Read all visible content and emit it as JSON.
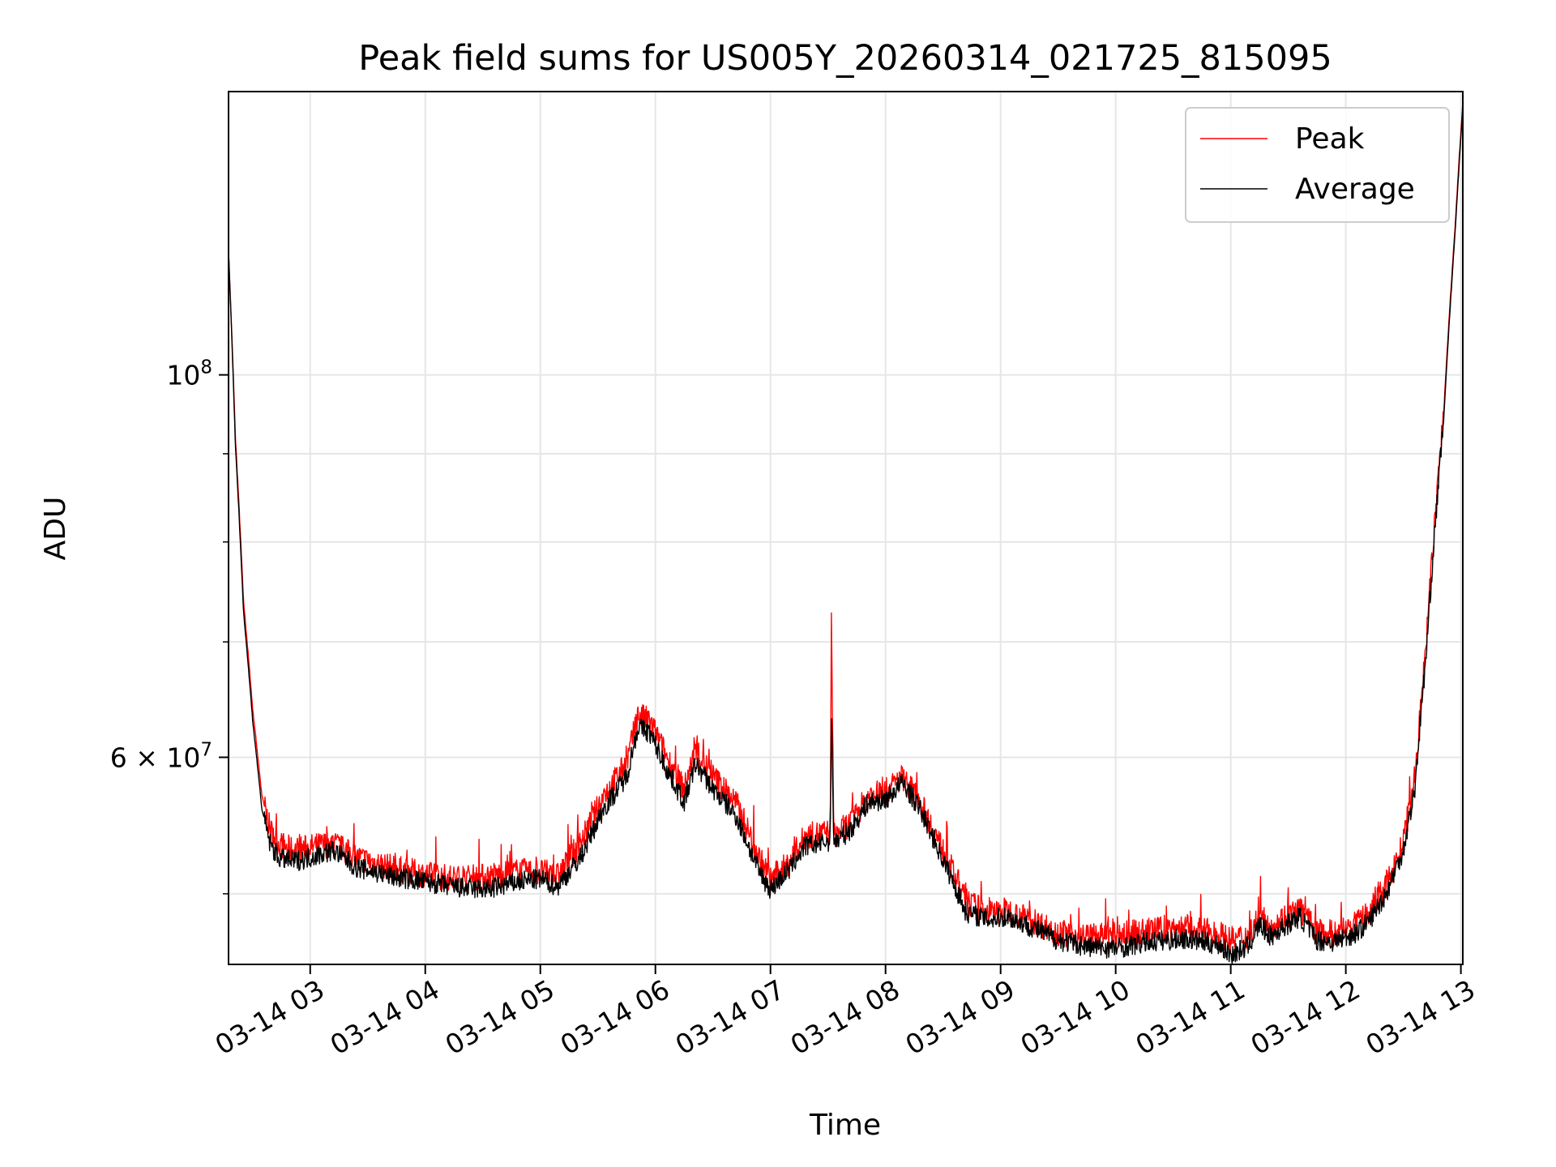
{
  "chart_data": {
    "type": "line",
    "title": "Peak field sums for US005Y_20260314_021725_815095",
    "xlabel": "Time",
    "ylabel": "ADU",
    "y_scale": "log",
    "ylim": [
      45500000,
      146000000
    ],
    "xlim": [
      "03-14 02:17:25",
      "03-14 13:01:00"
    ],
    "grid": true,
    "legend_position": "top-right",
    "x_ticks": [
      "03-14 03",
      "03-14 04",
      "03-14 05",
      "03-14 06",
      "03-14 07",
      "03-14 08",
      "03-14 09",
      "03-14 10",
      "03-14 11",
      "03-14 12",
      "03-14 13"
    ],
    "y_ticks": [
      {
        "value": 100000000,
        "mantissa": "10",
        "exponent": "8"
      },
      {
        "value": 60000000,
        "mantissa": "6 × 10",
        "exponent": "7"
      }
    ],
    "x_units": "hours since 03-14 00:00",
    "series": [
      {
        "name": "Peak",
        "color": "#ff0000",
        "x": [
          2.29,
          2.35,
          2.42,
          2.5,
          2.58,
          2.65,
          2.72,
          2.85,
          3.0,
          3.2,
          3.4,
          3.7,
          4.0,
          4.3,
          4.55,
          4.8,
          5.0,
          5.15,
          5.35,
          5.55,
          5.75,
          5.85,
          5.95,
          6.1,
          6.25,
          6.35,
          6.5,
          6.7,
          6.9,
          7.0,
          7.15,
          7.3,
          7.45,
          7.52,
          7.53,
          7.55,
          7.7,
          7.85,
          8.0,
          8.15,
          8.3,
          8.5,
          8.7,
          8.9,
          9.05,
          9.25,
          9.5,
          9.75,
          10.0,
          10.3,
          10.6,
          10.9,
          11.0,
          11.15,
          11.25,
          11.35,
          11.45,
          11.6,
          11.75,
          11.9,
          12.1,
          12.2,
          12.35,
          12.5,
          12.6,
          12.7,
          12.85,
          12.95,
          13.02
        ],
        "y": [
          118000000,
          92000000,
          74000000,
          64000000,
          57000000,
          54500000,
          53500000,
          53000000,
          53200000,
          53500000,
          52500000,
          51800000,
          51300000,
          51000000,
          51200000,
          51500000,
          51500000,
          51200000,
          53500000,
          57000000,
          59500000,
          63500000,
          63000000,
          60000000,
          57500000,
          60500000,
          58500000,
          56500000,
          52500000,
          51000000,
          52000000,
          54000000,
          54200000,
          54300000,
          72000000,
          54000000,
          55000000,
          57000000,
          57300000,
          58500000,
          56500000,
          53000000,
          49500000,
          48700000,
          48900000,
          48300000,
          47500000,
          47200000,
          47300000,
          47600000,
          47800000,
          47400000,
          47000000,
          47300000,
          48500000,
          47800000,
          48400000,
          49000000,
          47500000,
          47400000,
          48000000,
          48700000,
          50500000,
          53500000,
          58000000,
          70000000,
          95000000,
          122000000,
          145000000
        ]
      },
      {
        "name": "Average",
        "color": "#000000",
        "x": [
          2.29,
          2.35,
          2.42,
          2.5,
          2.58,
          2.65,
          2.72,
          2.85,
          3.0,
          3.2,
          3.4,
          3.7,
          4.0,
          4.3,
          4.55,
          4.8,
          5.0,
          5.15,
          5.35,
          5.55,
          5.75,
          5.85,
          5.95,
          6.1,
          6.25,
          6.35,
          6.5,
          6.7,
          6.9,
          7.0,
          7.15,
          7.3,
          7.45,
          7.52,
          7.53,
          7.55,
          7.7,
          7.85,
          8.0,
          8.15,
          8.3,
          8.5,
          8.7,
          8.9,
          9.05,
          9.25,
          9.5,
          9.75,
          10.0,
          10.3,
          10.6,
          10.9,
          11.0,
          11.15,
          11.25,
          11.35,
          11.45,
          11.6,
          11.75,
          11.9,
          12.1,
          12.2,
          12.35,
          12.5,
          12.6,
          12.7,
          12.85,
          12.95,
          13.02
        ],
        "y": [
          118000000,
          91000000,
          73000000,
          63000000,
          56000000,
          53500000,
          52500000,
          52200000,
          52500000,
          53000000,
          51800000,
          51200000,
          50800000,
          50400000,
          50300000,
          50800000,
          51000000,
          50500000,
          52500000,
          56000000,
          58500000,
          62500000,
          62000000,
          59000000,
          56500000,
          59500000,
          57500000,
          55500000,
          51500000,
          50300000,
          51500000,
          53300000,
          53500000,
          53700000,
          64000000,
          53500000,
          54500000,
          56500000,
          56700000,
          58000000,
          56000000,
          52300000,
          48800000,
          48300000,
          48500000,
          47900000,
          47000000,
          46600000,
          46500000,
          46900000,
          47100000,
          46700000,
          46100000,
          46600000,
          48000000,
          47200000,
          47800000,
          48500000,
          47000000,
          46900000,
          47500000,
          48200000,
          50000000,
          53000000,
          57500000,
          69000000,
          94000000,
          121000000,
          144000000
        ]
      }
    ]
  }
}
